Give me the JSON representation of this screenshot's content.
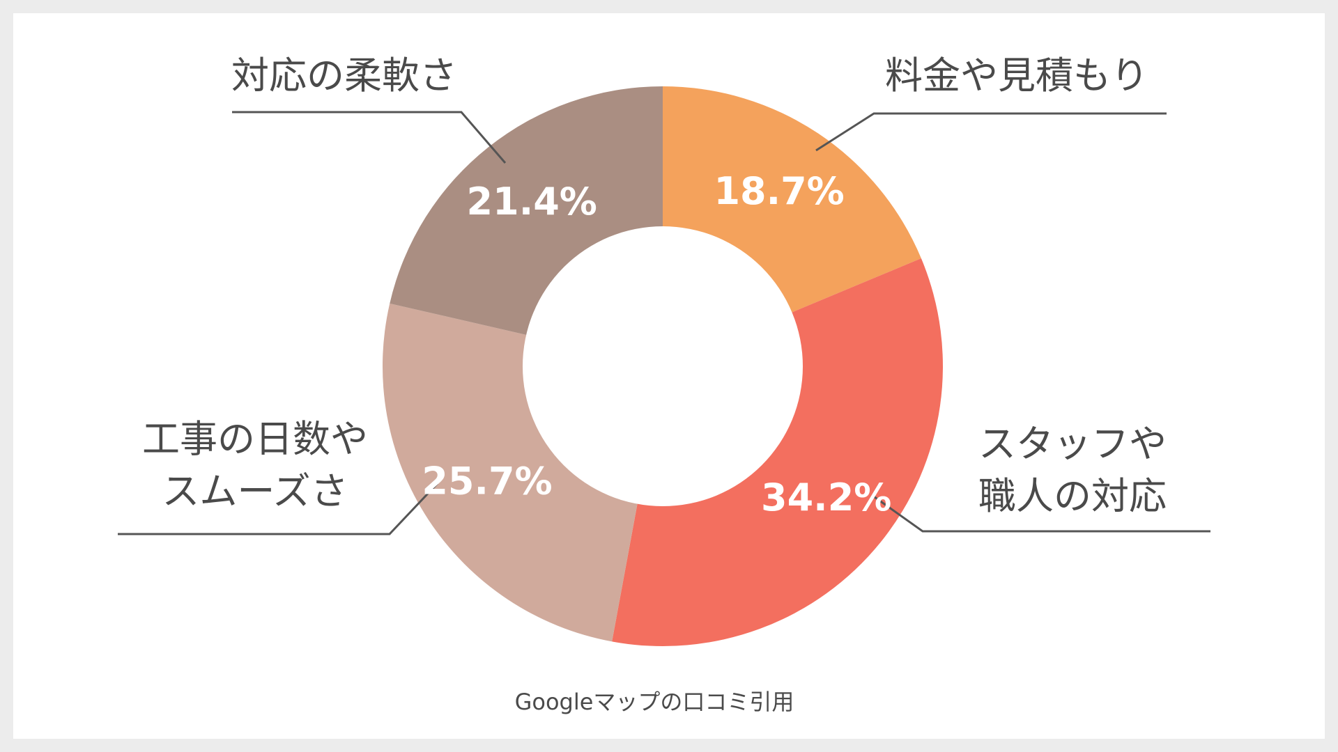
{
  "chart_data": {
    "type": "donut",
    "title": "",
    "source_note": "Googleマップの口コミ引用",
    "slices": [
      {
        "label_lines": [
          "料金や見積もり"
        ],
        "value": 18.7,
        "value_label": "18.7%",
        "color": "#f4a25c"
      },
      {
        "label_lines": [
          "スタッフや",
          "職人の対応"
        ],
        "value": 34.2,
        "value_label": "34.2%",
        "color": "#f36f5f"
      },
      {
        "label_lines": [
          "工事の日数や",
          "スムーズさ"
        ],
        "value": 25.7,
        "value_label": "25.7%",
        "color": "#d0aa9c"
      },
      {
        "label_lines": [
          "対応の柔軟さ"
        ],
        "value": 21.4,
        "value_label": "21.4%",
        "color": "#aa8e82"
      }
    ],
    "start_angle": "12 o'clock",
    "direction": "clockwise"
  }
}
